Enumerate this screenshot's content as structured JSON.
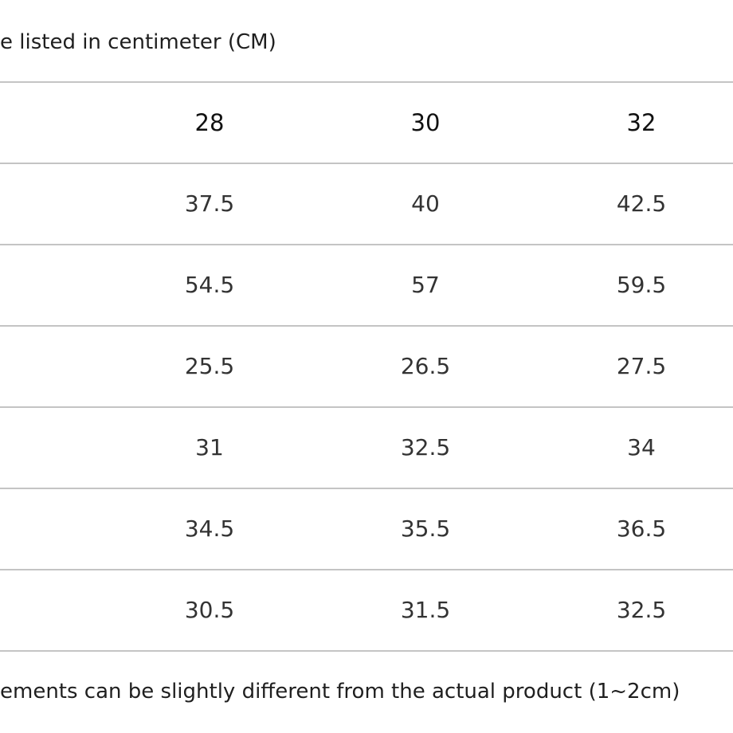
{
  "notes": {
    "top": "e listed in centimeter (CM)",
    "bottom": "ements can be slightly different from the actual product (1~2cm)"
  },
  "table": {
    "headers": [
      "28",
      "30",
      "32"
    ],
    "rows": [
      [
        "37.5",
        "40",
        "42.5"
      ],
      [
        "54.5",
        "57",
        "59.5"
      ],
      [
        "25.5",
        "26.5",
        "27.5"
      ],
      [
        "31",
        "32.5",
        "34"
      ],
      [
        "34.5",
        "35.5",
        "36.5"
      ],
      [
        "30.5",
        "31.5",
        "32.5"
      ]
    ]
  }
}
